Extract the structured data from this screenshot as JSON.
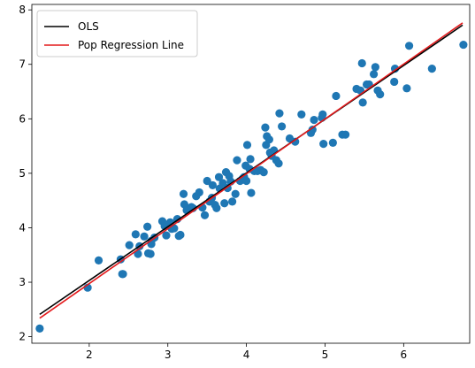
{
  "chart_data": {
    "type": "scatter",
    "title": "",
    "xlabel": "",
    "ylabel": "",
    "xlim": [
      1.27,
      6.84
    ],
    "ylim": [
      1.88,
      8.1
    ],
    "xticks": [
      2,
      3,
      4,
      5,
      6,
      7
    ],
    "yticks": [
      2,
      3,
      4,
      5,
      6,
      7,
      8
    ],
    "grid": false,
    "legend_position": "top-left",
    "colors": {
      "points": "#1f77b4",
      "ols": "#000000",
      "pop": "#e41a1c"
    },
    "lines": [
      {
        "name": "OLS",
        "color": "#000000",
        "x": [
          1.37,
          6.75
        ],
        "y": [
          2.41,
          7.72
        ]
      },
      {
        "name": "Pop Regression Line",
        "color": "#e41a1c",
        "x": [
          1.37,
          6.75
        ],
        "y": [
          2.34,
          7.76
        ]
      }
    ],
    "points": [
      [
        1.37,
        2.15
      ],
      [
        1.98,
        2.9
      ],
      [
        2.12,
        3.4
      ],
      [
        2.4,
        3.42
      ],
      [
        2.42,
        3.15
      ],
      [
        2.43,
        3.15
      ],
      [
        2.51,
        3.68
      ],
      [
        2.59,
        3.88
      ],
      [
        2.62,
        3.52
      ],
      [
        2.64,
        3.66
      ],
      [
        2.7,
        3.84
      ],
      [
        2.74,
        4.02
      ],
      [
        2.75,
        3.53
      ],
      [
        2.78,
        3.52
      ],
      [
        2.79,
        3.7
      ],
      [
        2.79,
        3.76
      ],
      [
        2.83,
        3.82
      ],
      [
        2.93,
        4.12
      ],
      [
        2.96,
        4.03
      ],
      [
        2.98,
        3.86
      ],
      [
        3.03,
        4.1
      ],
      [
        3.05,
        3.98
      ],
      [
        3.08,
        3.99
      ],
      [
        3.12,
        4.16
      ],
      [
        3.14,
        3.85
      ],
      [
        3.16,
        3.87
      ],
      [
        3.2,
        4.62
      ],
      [
        3.21,
        4.43
      ],
      [
        3.24,
        4.32
      ],
      [
        3.3,
        4.38
      ],
      [
        3.32,
        4.36
      ],
      [
        3.36,
        4.58
      ],
      [
        3.4,
        4.65
      ],
      [
        3.44,
        4.37
      ],
      [
        3.47,
        4.23
      ],
      [
        3.5,
        4.86
      ],
      [
        3.53,
        4.48
      ],
      [
        3.56,
        4.55
      ],
      [
        3.57,
        4.78
      ],
      [
        3.6,
        4.42
      ],
      [
        3.62,
        4.36
      ],
      [
        3.65,
        4.93
      ],
      [
        3.66,
        4.72
      ],
      [
        3.7,
        4.82
      ],
      [
        3.72,
        4.45
      ],
      [
        3.74,
        5.02
      ],
      [
        3.76,
        4.73
      ],
      [
        3.78,
        4.95
      ],
      [
        3.8,
        4.85
      ],
      [
        3.82,
        4.48
      ],
      [
        3.86,
        4.62
      ],
      [
        3.88,
        5.24
      ],
      [
        3.92,
        4.86
      ],
      [
        3.95,
        4.9
      ],
      [
        3.97,
        4.93
      ],
      [
        3.99,
        5.14
      ],
      [
        4.0,
        4.86
      ],
      [
        4.01,
        5.52
      ],
      [
        4.04,
        5.08
      ],
      [
        4.05,
        5.26
      ],
      [
        4.06,
        4.64
      ],
      [
        4.1,
        5.04
      ],
      [
        4.14,
        5.04
      ],
      [
        4.18,
        5.06
      ],
      [
        4.22,
        5.02
      ],
      [
        4.24,
        5.84
      ],
      [
        4.25,
        5.52
      ],
      [
        4.26,
        5.68
      ],
      [
        4.29,
        5.62
      ],
      [
        4.3,
        5.38
      ],
      [
        4.32,
        5.32
      ],
      [
        4.35,
        5.42
      ],
      [
        4.38,
        5.24
      ],
      [
        4.41,
        5.18
      ],
      [
        4.42,
        6.1
      ],
      [
        4.45,
        5.86
      ],
      [
        4.55,
        5.64
      ],
      [
        4.62,
        5.58
      ],
      [
        4.7,
        6.08
      ],
      [
        4.82,
        5.74
      ],
      [
        4.84,
        5.8
      ],
      [
        4.86,
        5.98
      ],
      [
        4.96,
        6.02
      ],
      [
        4.97,
        6.08
      ],
      [
        4.98,
        5.54
      ],
      [
        5.1,
        5.56
      ],
      [
        5.14,
        6.42
      ],
      [
        5.22,
        5.71
      ],
      [
        5.26,
        5.71
      ],
      [
        5.4,
        6.55
      ],
      [
        5.45,
        6.52
      ],
      [
        5.47,
        7.02
      ],
      [
        5.48,
        6.3
      ],
      [
        5.53,
        6.63
      ],
      [
        5.56,
        6.63
      ],
      [
        5.62,
        6.82
      ],
      [
        5.64,
        6.95
      ],
      [
        5.67,
        6.52
      ],
      [
        5.7,
        6.45
      ],
      [
        5.88,
        6.68
      ],
      [
        5.89,
        6.92
      ],
      [
        6.04,
        6.56
      ],
      [
        6.07,
        7.34
      ],
      [
        6.36,
        6.92
      ],
      [
        6.76,
        7.36
      ]
    ]
  }
}
